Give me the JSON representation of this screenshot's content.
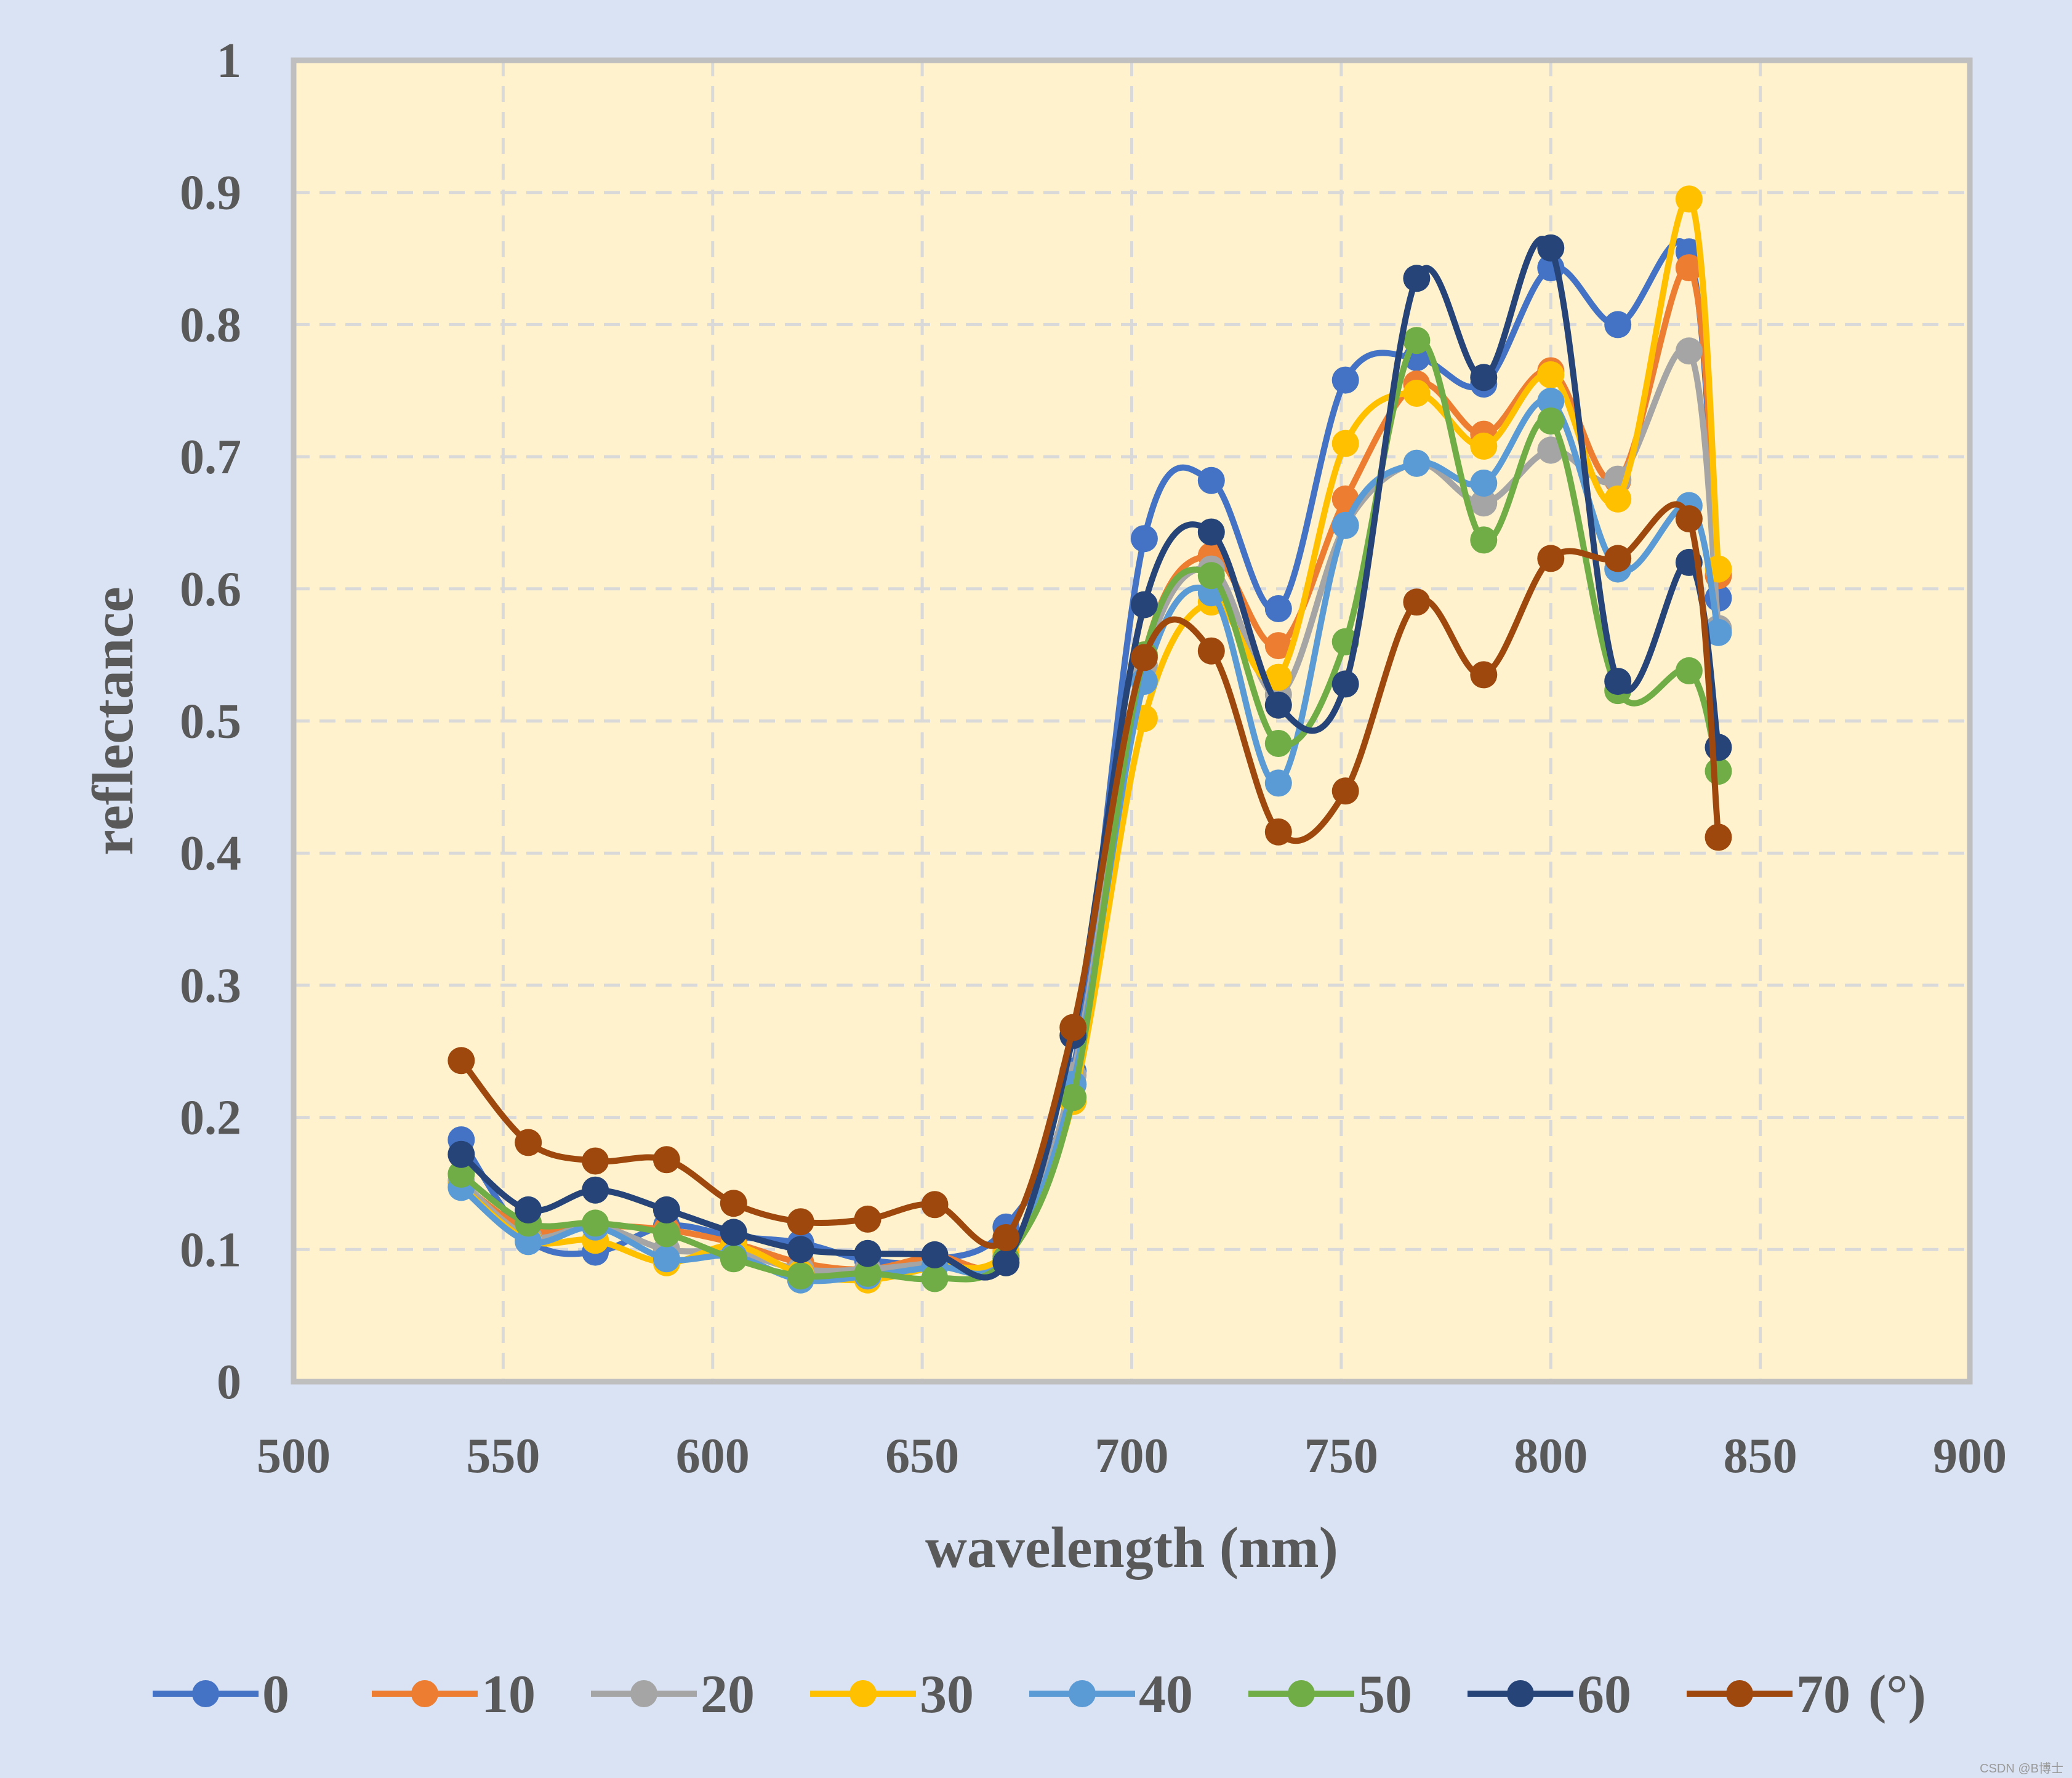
{
  "chart_data": {
    "type": "line",
    "title": "",
    "xlabel": "wavelength (nm)",
    "ylabel": "reflectance",
    "xlim": [
      500,
      900
    ],
    "ylim": [
      0,
      1
    ],
    "xticks": [
      "500",
      "550",
      "600",
      "650",
      "700",
      "750",
      "800",
      "850",
      "900"
    ],
    "yticks": [
      "0",
      "0.1",
      "0.2",
      "0.3",
      "0.4",
      "0.5",
      "0.6",
      "0.7",
      "0.8",
      "0.9",
      "1"
    ],
    "grid": true,
    "legend_position": "bottom",
    "legend_unit": "(°)",
    "x": [
      540,
      556,
      572,
      589,
      605,
      621,
      637,
      653,
      670,
      686,
      703,
      719,
      735,
      751,
      768,
      784,
      800,
      816,
      833,
      840
    ],
    "series": [
      {
        "name": "0",
        "color": "#4472C4",
        "values": [
          0.183,
          0.108,
          0.098,
          0.118,
          0.11,
          0.105,
          0.092,
          0.092,
          0.117,
          0.235,
          0.638,
          0.682,
          0.585,
          0.758,
          0.775,
          0.755,
          0.843,
          0.8,
          0.855,
          0.593
        ]
      },
      {
        "name": "10",
        "color": "#ED7D31",
        "values": [
          0.15,
          0.115,
          0.118,
          0.115,
          0.105,
          0.09,
          0.085,
          0.095,
          0.095,
          0.225,
          0.55,
          0.625,
          0.557,
          0.668,
          0.755,
          0.717,
          0.765,
          0.682,
          0.843,
          0.61
        ]
      },
      {
        "name": "20",
        "color": "#A5A5A5",
        "values": [
          0.152,
          0.11,
          0.118,
          0.1,
          0.098,
          0.085,
          0.085,
          0.09,
          0.095,
          0.232,
          0.542,
          0.615,
          0.52,
          0.648,
          0.695,
          0.665,
          0.705,
          0.683,
          0.78,
          0.57
        ]
      },
      {
        "name": "30",
        "color": "#FFC000",
        "values": [
          0.148,
          0.107,
          0.107,
          0.09,
          0.103,
          0.082,
          0.077,
          0.087,
          0.098,
          0.212,
          0.502,
          0.59,
          0.533,
          0.71,
          0.748,
          0.708,
          0.762,
          0.668,
          0.895,
          0.615
        ]
      },
      {
        "name": "40",
        "color": "#5B9BD5",
        "values": [
          0.147,
          0.106,
          0.117,
          0.093,
          0.095,
          0.077,
          0.08,
          0.087,
          0.093,
          0.225,
          0.53,
          0.597,
          0.453,
          0.648,
          0.695,
          0.68,
          0.742,
          0.615,
          0.663,
          0.567
        ]
      },
      {
        "name": "50",
        "color": "#70AD47",
        "values": [
          0.157,
          0.12,
          0.12,
          0.112,
          0.093,
          0.08,
          0.082,
          0.078,
          0.093,
          0.215,
          0.55,
          0.61,
          0.483,
          0.56,
          0.788,
          0.637,
          0.727,
          0.523,
          0.538,
          0.462
        ]
      },
      {
        "name": "60",
        "color": "#264478",
        "values": [
          0.172,
          0.13,
          0.145,
          0.13,
          0.113,
          0.1,
          0.097,
          0.096,
          0.09,
          0.262,
          0.588,
          0.643,
          0.512,
          0.528,
          0.835,
          0.76,
          0.858,
          0.53,
          0.62,
          0.48
        ]
      },
      {
        "name": "70",
        "color": "#9E480E",
        "values": [
          0.243,
          0.181,
          0.167,
          0.168,
          0.135,
          0.121,
          0.123,
          0.134,
          0.109,
          0.268,
          0.548,
          0.553,
          0.416,
          0.447,
          0.59,
          0.535,
          0.623,
          0.623,
          0.653,
          0.412
        ]
      }
    ],
    "watermark": "CSDN @B博士"
  }
}
